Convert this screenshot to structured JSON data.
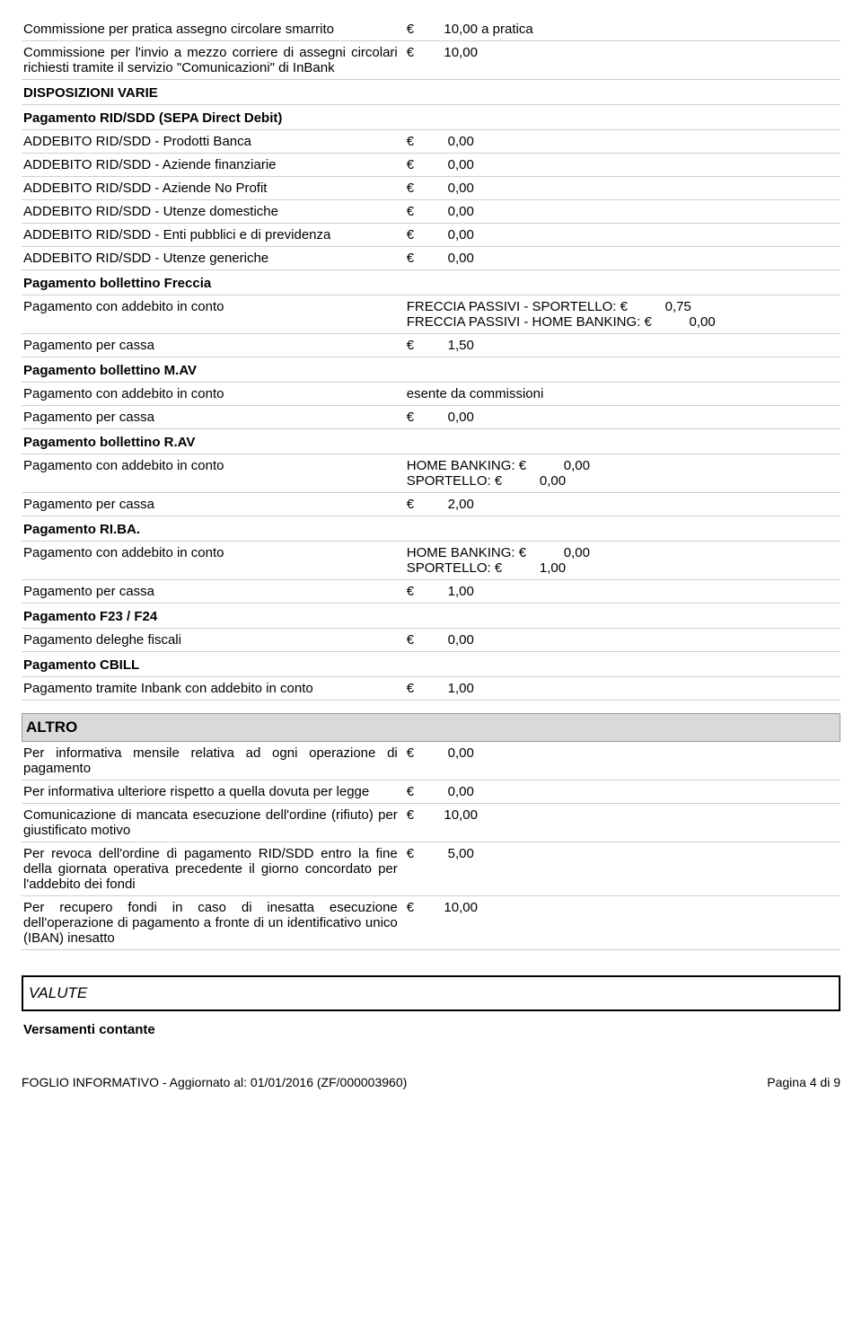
{
  "rows_top": [
    {
      "l": "Commissione per pratica assegno circolare smarrito",
      "r": "€        10,00 a pratica"
    },
    {
      "l": "Commissione per l'invio a mezzo corriere di assegni circolari richiesti tramite il servizio \"Comunicazioni\" di InBank",
      "r": "€        10,00",
      "justify": true
    }
  ],
  "sub1": "DISPOSIZIONI VARIE",
  "sub2": "Pagamento RID/SDD (SEPA Direct Debit)",
  "rows_rid": [
    {
      "l": "ADDEBITO RID/SDD - Prodotti Banca",
      "r": "€         0,00"
    },
    {
      "l": "ADDEBITO RID/SDD - Aziende finanziarie",
      "r": "€         0,00"
    },
    {
      "l": "ADDEBITO RID/SDD - Aziende No Profit",
      "r": "€         0,00"
    },
    {
      "l": "ADDEBITO RID/SDD - Utenze domestiche",
      "r": "€         0,00"
    },
    {
      "l": "ADDEBITO RID/SDD - Enti pubblici e di previdenza",
      "r": "€         0,00"
    },
    {
      "l": "ADDEBITO RID/SDD - Utenze generiche",
      "r": "€         0,00"
    }
  ],
  "sub3": "Pagamento bollettino Freccia",
  "rows_freccia": [
    {
      "l": "Pagamento con addebito in conto",
      "r": "FRECCIA PASSIVI - SPORTELLO: €          0,75\nFRECCIA PASSIVI - HOME BANKING: €          0,00"
    },
    {
      "l": "Pagamento per cassa",
      "r": "€         1,50"
    }
  ],
  "sub4": "Pagamento bollettino M.AV",
  "rows_mav": [
    {
      "l": "Pagamento con addebito in conto",
      "r": "esente da commissioni"
    },
    {
      "l": "Pagamento per cassa",
      "r": "€         0,00"
    }
  ],
  "sub5": "Pagamento bollettino R.AV",
  "rows_rav": [
    {
      "l": "Pagamento con addebito in conto",
      "r": "HOME BANKING: €          0,00\nSPORTELLO: €          0,00"
    },
    {
      "l": "Pagamento per cassa",
      "r": "€         2,00"
    }
  ],
  "sub6": "Pagamento RI.BA.",
  "rows_riba": [
    {
      "l": "Pagamento con addebito in conto",
      "r": "HOME BANKING: €          0,00\nSPORTELLO: €          1,00"
    },
    {
      "l": "Pagamento per cassa",
      "r": "€         1,00"
    }
  ],
  "sub7": "Pagamento F23 / F24",
  "rows_f23": [
    {
      "l": "Pagamento deleghe fiscali",
      "r": "€         0,00"
    }
  ],
  "sub8": "Pagamento CBILL",
  "rows_cbill": [
    {
      "l": "Pagamento tramite Inbank con addebito in conto",
      "r": "€         1,00"
    }
  ],
  "altro_header": "ALTRO",
  "rows_altro": [
    {
      "l": "Per informativa mensile relativa ad ogni operazione di pagamento",
      "r": "€         0,00",
      "justify": true
    },
    {
      "l": "Per informativa ulteriore rispetto a quella dovuta per legge",
      "r": "€         0,00",
      "justify": true
    },
    {
      "l": "Comunicazione di mancata esecuzione dell'ordine (rifiuto) per giustificato motivo",
      "r": "€        10,00",
      "justify": true
    },
    {
      "l": "Per revoca dell'ordine di pagamento RID/SDD entro la fine della giornata operativa precedente il giorno concordato per l'addebito dei fondi",
      "r": "€         5,00",
      "justify": true
    },
    {
      "l": "Per recupero fondi in caso di inesatta esecuzione dell'operazione di pagamento a fronte di un identificativo unico (IBAN) inesatto",
      "r": "€        10,00",
      "justify": true
    }
  ],
  "valute_box": "VALUTE",
  "sub_valute": "Versamenti contante",
  "footer_left": "FOGLIO INFORMATIVO - Aggiornato al: 01/01/2016         (ZF/000003960)",
  "footer_right": "Pagina 4 di 9"
}
